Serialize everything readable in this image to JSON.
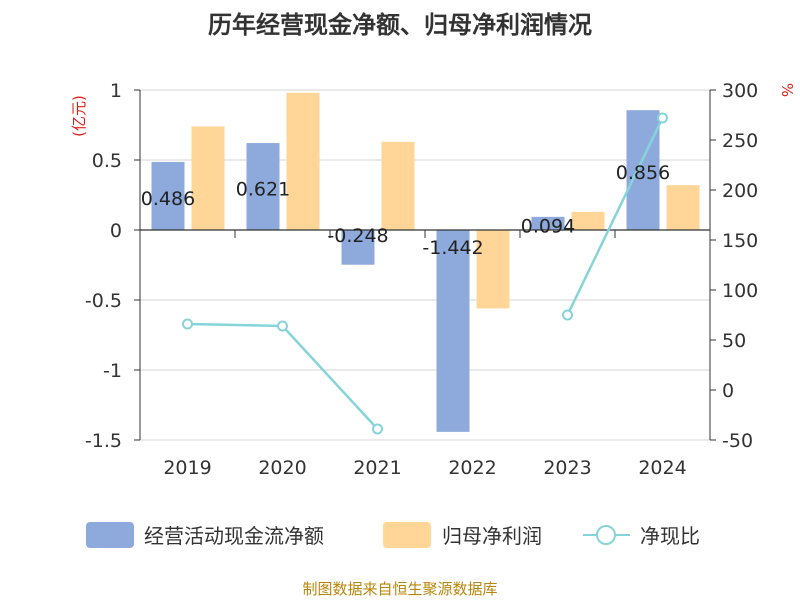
{
  "chart_data": {
    "type": "bar",
    "title": "历年经营现金净额、归母净利润情况",
    "categories": [
      "2019",
      "2020",
      "2021",
      "2022",
      "2023",
      "2024"
    ],
    "left_axis": {
      "unit": "(亿元)",
      "ylim": [
        -1.5,
        1
      ],
      "ticks": [
        1,
        0.5,
        0,
        -0.5,
        -1,
        -1.5
      ],
      "tick_labels": [
        "1",
        "0.5",
        "0",
        "-0.5",
        "-1",
        "-1.5"
      ]
    },
    "right_axis": {
      "unit": "%",
      "ylim": [
        -50,
        300
      ],
      "ticks": [
        300,
        250,
        200,
        150,
        100,
        50,
        0,
        -50
      ],
      "tick_labels": [
        "300",
        "250",
        "200",
        "150",
        "100",
        "50",
        "0",
        "-50"
      ]
    },
    "series": [
      {
        "name": "经营活动现金流净额",
        "type": "bar",
        "axis": "left",
        "color": "#8eaadc",
        "values": [
          0.486,
          0.621,
          -0.248,
          -1.442,
          0.094,
          0.856
        ],
        "labels": [
          "0.486",
          "0.621",
          "-0.248",
          "-1.442",
          "0.094",
          "0.856"
        ]
      },
      {
        "name": "归母净利润",
        "type": "bar",
        "axis": "left",
        "color": "#ffd697",
        "values": [
          0.74,
          0.98,
          0.63,
          -0.56,
          0.13,
          0.32
        ]
      },
      {
        "name": "净现比",
        "type": "line",
        "axis": "right",
        "color": "#86d4da",
        "values": [
          66,
          64,
          -39,
          null,
          75,
          272
        ]
      }
    ],
    "source": "制图数据来自恒生聚源数据库"
  }
}
